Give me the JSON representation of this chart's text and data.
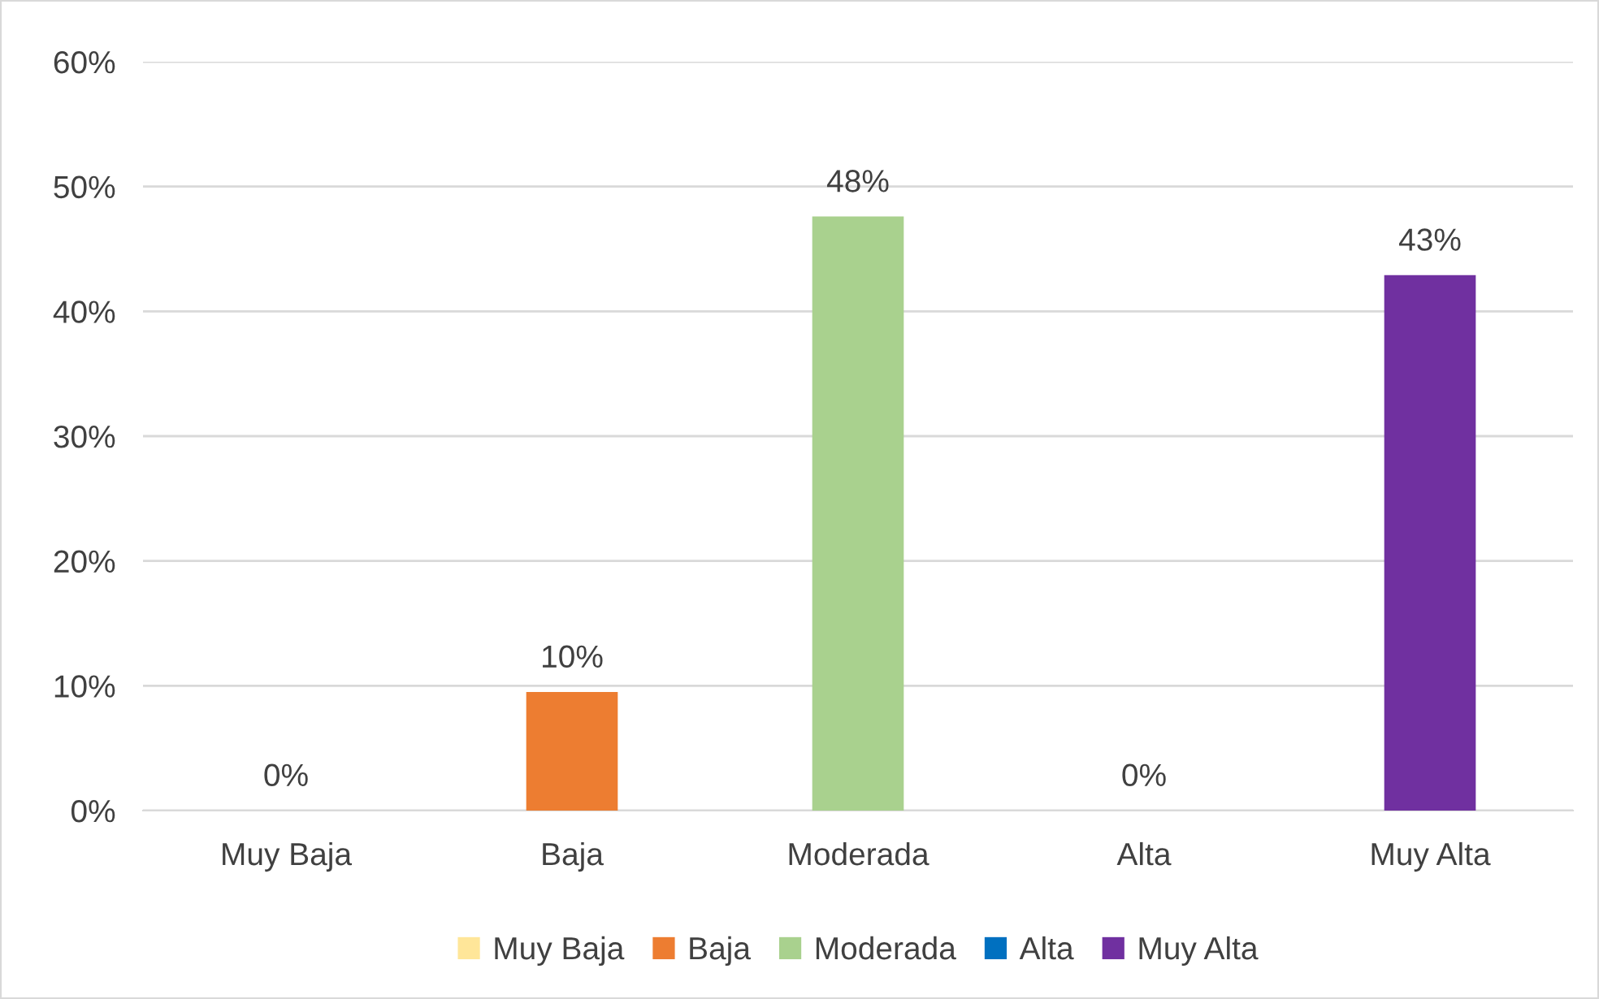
{
  "chart_data": {
    "type": "bar",
    "categories": [
      "Muy Baja",
      "Baja",
      "Moderada",
      "Alta",
      "Muy Alta"
    ],
    "series": [
      {
        "name": "Muy Baja",
        "color": "#ffe699",
        "values": [
          0,
          null,
          null,
          null,
          null
        ],
        "value_labels": [
          "0%",
          null,
          null,
          null,
          null
        ]
      },
      {
        "name": "Baja",
        "color": "#ed7d31",
        "values": [
          null,
          9.5,
          null,
          null,
          null
        ],
        "value_labels": [
          null,
          "10%",
          null,
          null,
          null
        ]
      },
      {
        "name": "Moderada",
        "color": "#a9d18e",
        "values": [
          null,
          null,
          47.6,
          null,
          null
        ],
        "value_labels": [
          null,
          null,
          "48%",
          null,
          null
        ]
      },
      {
        "name": "Alta",
        "color": "#0070c0",
        "values": [
          null,
          null,
          null,
          0,
          null
        ],
        "value_labels": [
          null,
          null,
          null,
          "0%",
          null
        ]
      },
      {
        "name": "Muy Alta",
        "color": "#7030a0",
        "values": [
          null,
          null,
          null,
          null,
          42.9
        ],
        "value_labels": [
          null,
          null,
          null,
          null,
          "43%"
        ]
      }
    ],
    "ylim": [
      0,
      60
    ],
    "yticks": [
      {
        "value": 0,
        "label": "0%"
      },
      {
        "value": 10,
        "label": "10%"
      },
      {
        "value": 20,
        "label": "20%"
      },
      {
        "value": 30,
        "label": "30%"
      },
      {
        "value": 40,
        "label": "40%"
      },
      {
        "value": 50,
        "label": "50%"
      },
      {
        "value": 60,
        "label": "60%"
      }
    ],
    "grid": "y",
    "legend": "bottom"
  }
}
